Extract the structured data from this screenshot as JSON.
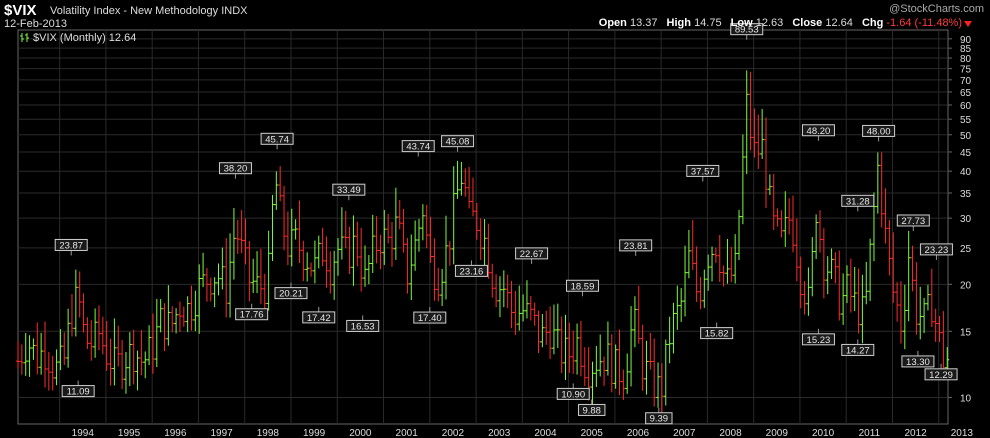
{
  "header": {
    "symbol": "$VIX",
    "name": "Volatility Index - New Methodology",
    "exchange": "INDX",
    "date": "12-Feb-2013",
    "watermark": "@StockCharts.com",
    "open_label": "Open",
    "open": "13.37",
    "high_label": "High",
    "high": "14.75",
    "low_label": "Low",
    "low": "12.63",
    "close_label": "Close",
    "close": "12.64",
    "chg_label": "Chg",
    "chg": "-1.64 (-11.48%)"
  },
  "legend": {
    "text": "$VIX (Monthly) 12.64"
  },
  "colors": {
    "up": "#7cfc3c",
    "down": "#ff2a2a",
    "grid": "#2a2a2a",
    "axis": "#666666",
    "label_bg": "#cfcfcf"
  },
  "chart_data": {
    "type": "ohlc",
    "scale": "log",
    "grid": true,
    "x_ticks": [
      "1994",
      "1995",
      "1996",
      "1997",
      "1998",
      "1999",
      "2000",
      "2001",
      "2002",
      "2003",
      "2004",
      "2005",
      "2006",
      "2007",
      "2008",
      "2009",
      "2010",
      "2011",
      "2012",
      "2013"
    ],
    "y_ticks": [
      10,
      15,
      20,
      25,
      30,
      35,
      40,
      45,
      50,
      55,
      60,
      65,
      70,
      75,
      80,
      85,
      90
    ],
    "ylim": [
      8.5,
      95
    ],
    "xlim": [
      1993.1,
      2013.2
    ],
    "monthly_close": [
      [
        1993.1,
        12.5
      ],
      [
        1993.3,
        14.2
      ],
      [
        1993.5,
        12.8
      ],
      [
        1993.7,
        13.4
      ],
      [
        1993.9,
        11.8
      ],
      [
        1994.1,
        12.6
      ],
      [
        1994.25,
        16.8
      ],
      [
        1994.4,
        18.6
      ],
      [
        1994.55,
        14.2
      ],
      [
        1994.7,
        13.9
      ],
      [
        1994.85,
        14.8
      ],
      [
        1995.0,
        13.2
      ],
      [
        1995.2,
        12.1
      ],
      [
        1995.4,
        12.8
      ],
      [
        1995.6,
        13.3
      ],
      [
        1995.8,
        12.4
      ],
      [
        1996.0,
        13.6
      ],
      [
        1996.2,
        16.2
      ],
      [
        1996.4,
        15.4
      ],
      [
        1996.6,
        17.6
      ],
      [
        1996.8,
        17.2
      ],
      [
        1997.0,
        19.5
      ],
      [
        1997.2,
        20.8
      ],
      [
        1997.4,
        21.3
      ],
      [
        1997.6,
        19.6
      ],
      [
        1997.8,
        28.5
      ],
      [
        1997.95,
        24.0
      ],
      [
        1998.1,
        20.5
      ],
      [
        1998.3,
        19.6
      ],
      [
        1998.5,
        20.1
      ],
      [
        1998.65,
        39.0
      ],
      [
        1998.8,
        29.0
      ],
      [
        1998.95,
        25.0
      ],
      [
        1999.1,
        26.0
      ],
      [
        1999.3,
        24.0
      ],
      [
        1999.5,
        22.0
      ],
      [
        1999.7,
        25.0
      ],
      [
        1999.85,
        22.5
      ],
      [
        2000.0,
        24.9
      ],
      [
        2000.2,
        24.0
      ],
      [
        2000.4,
        26.0
      ],
      [
        2000.6,
        20.5
      ],
      [
        2000.8,
        25.0
      ],
      [
        2000.95,
        26.9
      ],
      [
        2001.1,
        26.0
      ],
      [
        2001.3,
        29.0
      ],
      [
        2001.5,
        21.0
      ],
      [
        2001.7,
        26.0
      ],
      [
        2001.85,
        31.9
      ],
      [
        2002.0,
        23.0
      ],
      [
        2002.2,
        21.1
      ],
      [
        2002.4,
        25.5
      ],
      [
        2002.55,
        33.0
      ],
      [
        2002.7,
        39.7
      ],
      [
        2002.85,
        30.0
      ],
      [
        2003.0,
        30.0
      ],
      [
        2003.2,
        26.0
      ],
      [
        2003.4,
        20.0
      ],
      [
        2003.6,
        19.6
      ],
      [
        2003.8,
        16.5
      ],
      [
        2004.0,
        17.1
      ],
      [
        2004.2,
        16.2
      ],
      [
        2004.4,
        14.4
      ],
      [
        2004.6,
        15.3
      ],
      [
        2004.8,
        13.3
      ],
      [
        2005.0,
        13.0
      ],
      [
        2005.2,
        14.2
      ],
      [
        2005.4,
        12.0
      ],
      [
        2005.6,
        12.6
      ],
      [
        2005.8,
        13.0
      ],
      [
        2006.0,
        12.0
      ],
      [
        2006.2,
        11.6
      ],
      [
        2006.4,
        16.2
      ],
      [
        2006.6,
        12.3
      ],
      [
        2006.8,
        11.0
      ],
      [
        2007.0,
        10.4
      ],
      [
        2007.2,
        15.0
      ],
      [
        2007.45,
        18.0
      ],
      [
        2007.6,
        23.5
      ],
      [
        2007.8,
        18.5
      ],
      [
        2008.0,
        24.0
      ],
      [
        2008.2,
        26.0
      ],
      [
        2008.4,
        20.0
      ],
      [
        2008.6,
        22.0
      ],
      [
        2008.75,
        39.4
      ],
      [
        2008.85,
        59.9
      ],
      [
        2009.0,
        44.8
      ],
      [
        2009.2,
        46.4
      ],
      [
        2009.4,
        29.0
      ],
      [
        2009.6,
        25.9
      ],
      [
        2009.8,
        30.7
      ],
      [
        2010.0,
        21.7
      ],
      [
        2010.2,
        17.6
      ],
      [
        2010.35,
        32.1
      ],
      [
        2010.5,
        23.5
      ],
      [
        2010.7,
        21.2
      ],
      [
        2010.9,
        17.8
      ],
      [
        2011.0,
        19.4
      ],
      [
        2011.2,
        17.7
      ],
      [
        2011.4,
        16.5
      ],
      [
        2011.6,
        31.6
      ],
      [
        2011.7,
        42.9
      ],
      [
        2011.8,
        29.9
      ],
      [
        2012.0,
        19.4
      ],
      [
        2012.2,
        15.5
      ],
      [
        2012.35,
        24.1
      ],
      [
        2012.5,
        17.1
      ],
      [
        2012.7,
        16.0
      ],
      [
        2012.85,
        18.0
      ],
      [
        2013.0,
        14.3
      ],
      [
        2013.1,
        12.64
      ]
    ],
    "annotations": [
      {
        "x": 1994.25,
        "y": 23.87,
        "text": "23.87",
        "pos": "above"
      },
      {
        "x": 1994.4,
        "y": 11.09,
        "text": "11.09",
        "pos": "below"
      },
      {
        "x": 1997.8,
        "y": 38.2,
        "text": "38.20",
        "pos": "above"
      },
      {
        "x": 1998.15,
        "y": 17.76,
        "text": "17.76",
        "pos": "below"
      },
      {
        "x": 1998.7,
        "y": 45.74,
        "text": "45.74",
        "pos": "above"
      },
      {
        "x": 1999.0,
        "y": 20.21,
        "text": "20.21",
        "pos": "below"
      },
      {
        "x": 1999.6,
        "y": 17.42,
        "text": "17.42",
        "pos": "below"
      },
      {
        "x": 2000.25,
        "y": 33.49,
        "text": "33.49",
        "pos": "above"
      },
      {
        "x": 2000.55,
        "y": 16.53,
        "text": "16.53",
        "pos": "below"
      },
      {
        "x": 2001.75,
        "y": 43.74,
        "text": "43.74",
        "pos": "above"
      },
      {
        "x": 2002.0,
        "y": 17.4,
        "text": "17.40",
        "pos": "below"
      },
      {
        "x": 2002.6,
        "y": 45.08,
        "text": "45.08",
        "pos": "above"
      },
      {
        "x": 2002.9,
        "y": 23.16,
        "text": "23.16",
        "pos": "below"
      },
      {
        "x": 2004.2,
        "y": 22.67,
        "text": "22.67",
        "pos": "above"
      },
      {
        "x": 2005.3,
        "y": 18.59,
        "text": "18.59",
        "pos": "above"
      },
      {
        "x": 2005.1,
        "y": 10.9,
        "text": "10.90",
        "pos": "below"
      },
      {
        "x": 2005.5,
        "y": 9.88,
        "text": "9.88",
        "pos": "below"
      },
      {
        "x": 2006.45,
        "y": 23.81,
        "text": "23.81",
        "pos": "above"
      },
      {
        "x": 2006.95,
        "y": 9.39,
        "text": "9.39",
        "pos": "below"
      },
      {
        "x": 2007.9,
        "y": 37.57,
        "text": "37.57",
        "pos": "above"
      },
      {
        "x": 2008.2,
        "y": 15.82,
        "text": "15.82",
        "pos": "below"
      },
      {
        "x": 2008.85,
        "y": 89.53,
        "text": "89.53",
        "pos": "above"
      },
      {
        "x": 2010.4,
        "y": 48.2,
        "text": "48.20",
        "pos": "above"
      },
      {
        "x": 2010.4,
        "y": 15.23,
        "text": "15.23",
        "pos": "below"
      },
      {
        "x": 2011.25,
        "y": 31.28,
        "text": "31.28",
        "pos": "above"
      },
      {
        "x": 2011.25,
        "y": 14.27,
        "text": "14.27",
        "pos": "below"
      },
      {
        "x": 2011.7,
        "y": 48.0,
        "text": "48.00",
        "pos": "above"
      },
      {
        "x": 2012.45,
        "y": 27.73,
        "text": "27.73",
        "pos": "above"
      },
      {
        "x": 2012.55,
        "y": 13.3,
        "text": "13.30",
        "pos": "below"
      },
      {
        "x": 2012.95,
        "y": 23.23,
        "text": "23.23",
        "pos": "above"
      },
      {
        "x": 2013.05,
        "y": 12.29,
        "text": "12.29",
        "pos": "below"
      }
    ]
  }
}
